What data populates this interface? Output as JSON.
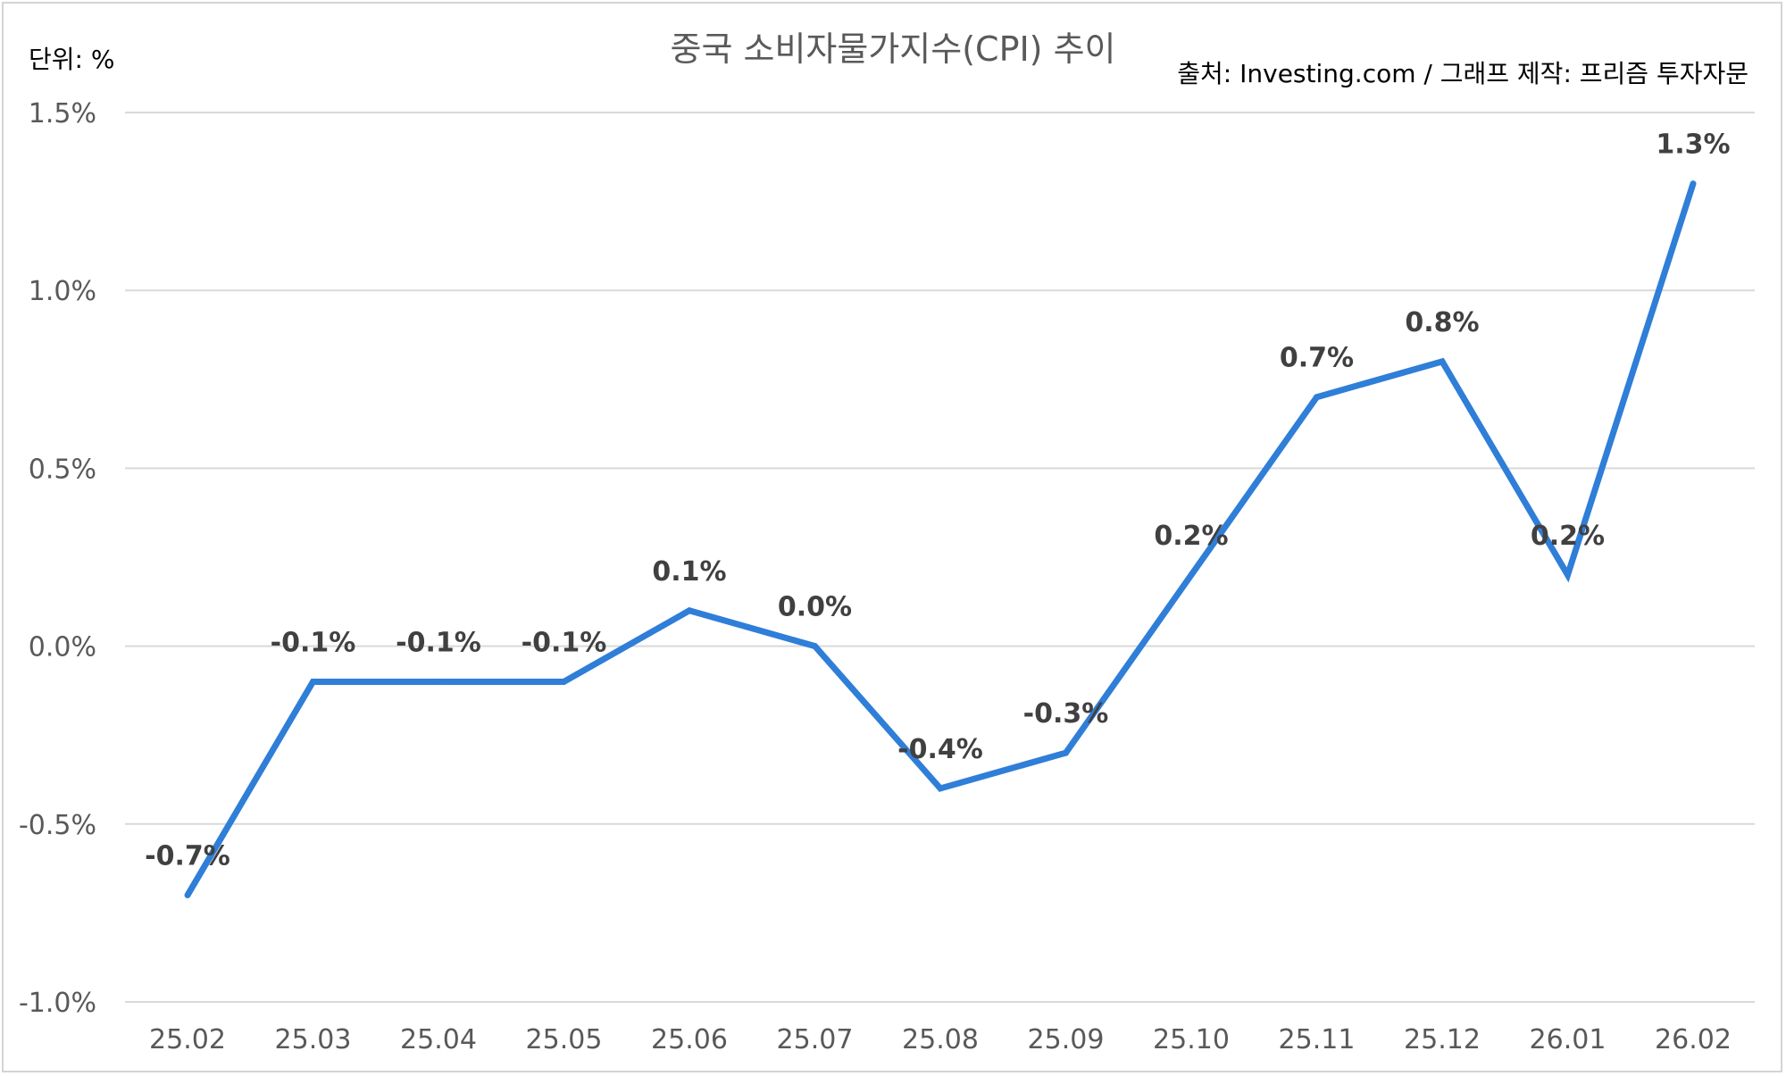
{
  "chart_data": {
    "type": "line",
    "title": "중국 소비자물가지수(CPI) 추이",
    "unit_label": "단위: %",
    "source": "출처: Investing.com / 그래프 제작: 프리즘 투자자문",
    "categories": [
      "25.02",
      "25.03",
      "25.04",
      "25.05",
      "25.06",
      "25.07",
      "25.08",
      "25.09",
      "25.10",
      "25.11",
      "25.12",
      "26.01",
      "26.02"
    ],
    "series": [
      {
        "values": [
          -0.7,
          -0.1,
          -0.1,
          -0.1,
          0.1,
          0.0,
          -0.4,
          -0.3,
          0.2,
          0.7,
          0.8,
          0.2,
          1.3
        ],
        "data_labels": [
          "-0.7%",
          "-0.1%",
          "-0.1%",
          "-0.1%",
          "0.1%",
          "0.0%",
          "-0.4%",
          "-0.3%",
          "0.2%",
          "0.7%",
          "0.8%",
          "0.2%",
          "1.3%"
        ],
        "color": "#2f7ed8"
      }
    ],
    "ylim": [
      -1.0,
      1.5
    ],
    "yticks": [
      1.5,
      1.0,
      0.5,
      0.0,
      -0.5,
      -1.0
    ],
    "ytick_labels": [
      "1.5%",
      "1.0%",
      "0.5%",
      "0.0%",
      "-0.5%",
      "-1.0%"
    ],
    "grid": true,
    "legend": "none"
  }
}
